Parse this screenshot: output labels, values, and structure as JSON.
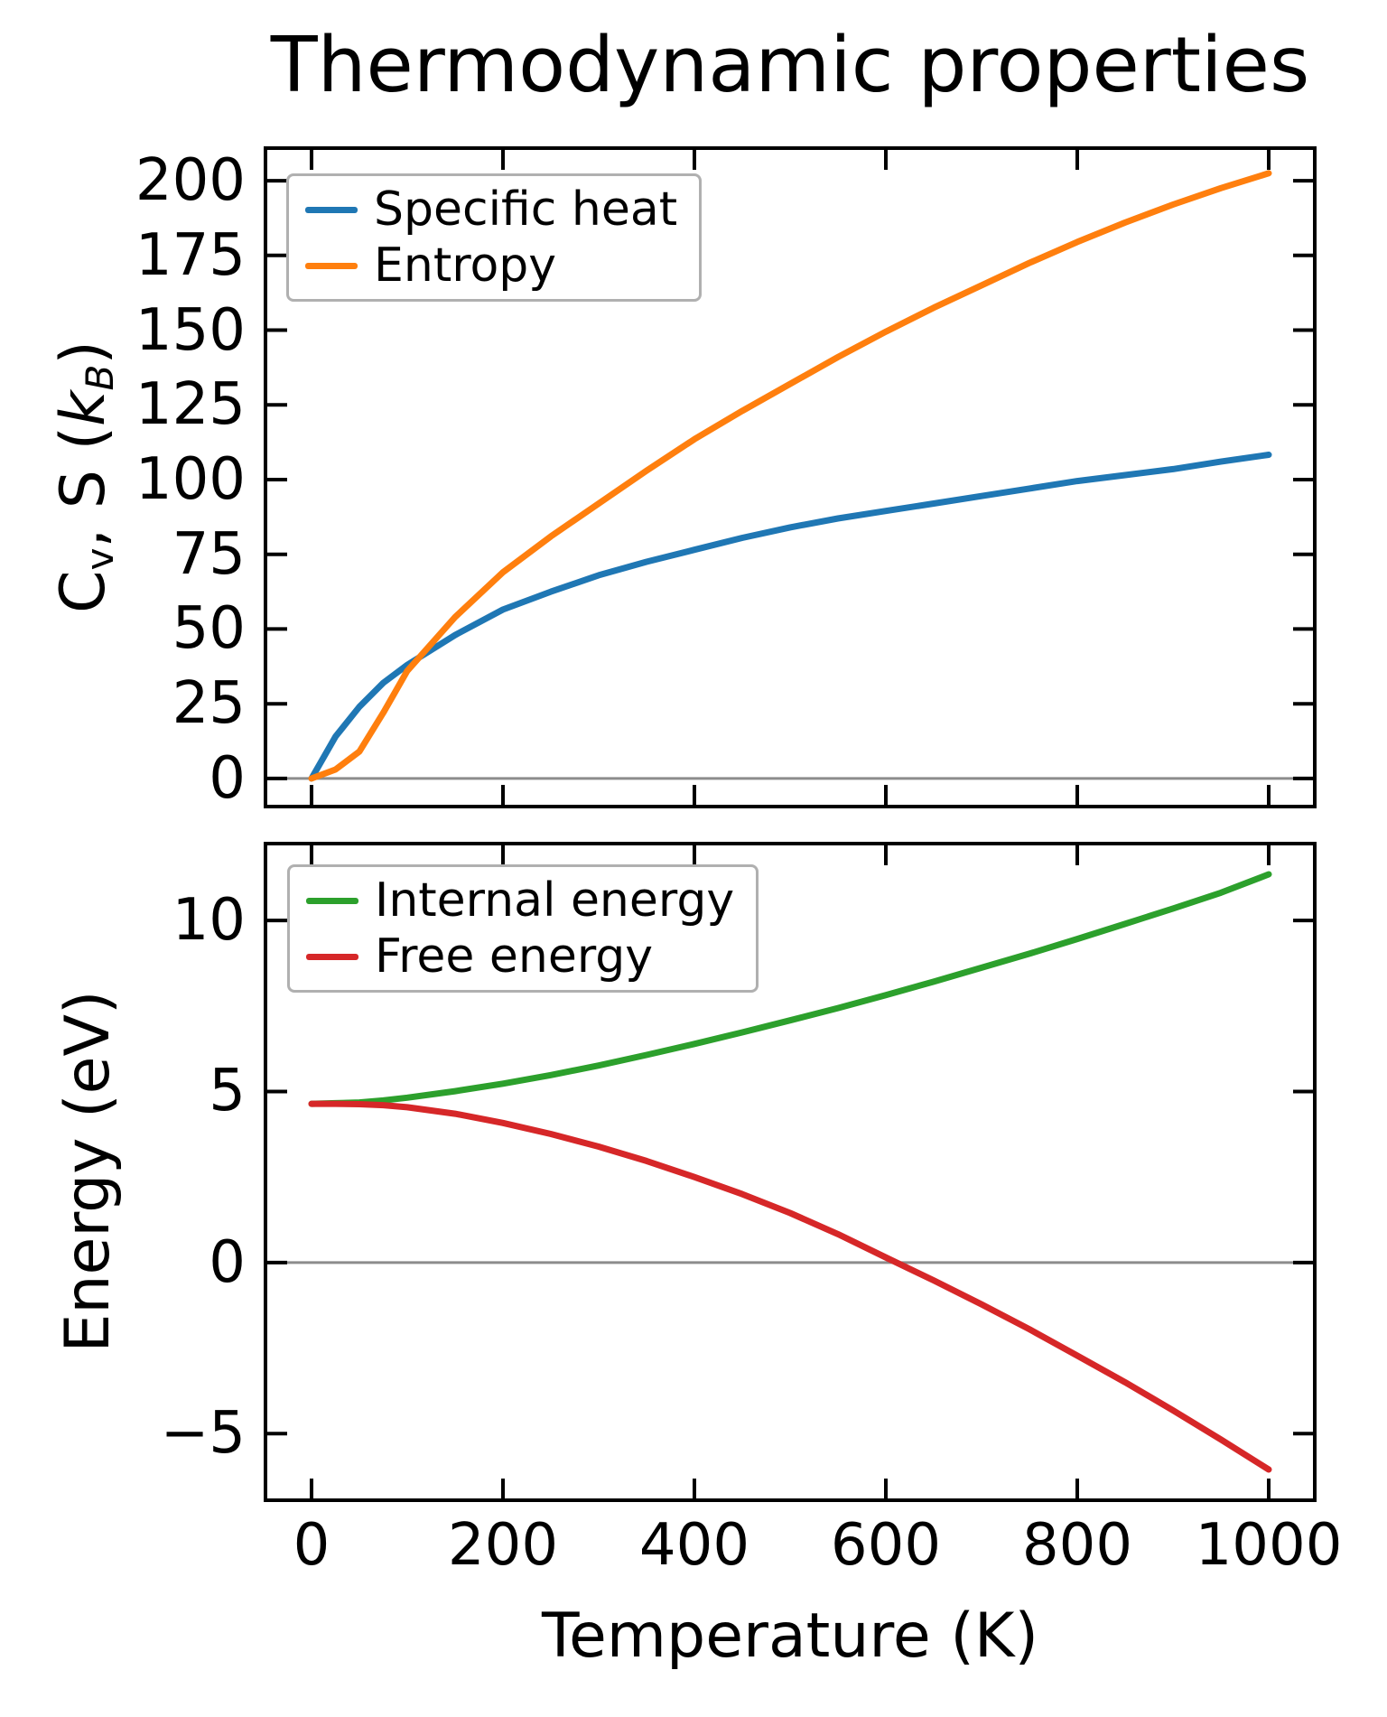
{
  "figure_title": "Thermodynamic properties",
  "colors": {
    "specific_heat": "#1f77b4",
    "entropy": "#ff7f0e",
    "internal_energy": "#2ca02c",
    "free_energy": "#d62728",
    "zero_line": "#8c8c8c",
    "axes": "#000000",
    "legend_border": "#b0b0b0"
  },
  "chart_data": [
    {
      "type": "line",
      "title": "Thermodynamic properties",
      "xlabel": "",
      "ylabel": "Cv, S (kB)",
      "ylabel_segments": [
        {
          "text": "C"
        },
        {
          "text": "v",
          "sub": true
        },
        {
          "text": ", S ("
        },
        {
          "text": "k",
          "italic": true
        },
        {
          "text": "B",
          "sub": true,
          "italic": true
        },
        {
          "text": ")"
        }
      ],
      "x": [
        0,
        25,
        50,
        75,
        100,
        150,
        200,
        250,
        300,
        350,
        400,
        450,
        500,
        550,
        600,
        650,
        700,
        750,
        800,
        850,
        900,
        950,
        1000
      ],
      "series": [
        {
          "name": "Specific heat",
          "color": "#1f77b4",
          "values": [
            0,
            14,
            24,
            32,
            38,
            48,
            56.5,
            62.5,
            68,
            72.5,
            76.5,
            80.5,
            84,
            87,
            89.5,
            92,
            94.5,
            97,
            99.5,
            101.5,
            103.5,
            106,
            108.3
          ]
        },
        {
          "name": "Entropy",
          "color": "#ff7f0e",
          "values": [
            0,
            3,
            9,
            22,
            36,
            54,
            69,
            81,
            92,
            103,
            113.5,
            123,
            132,
            141,
            149.5,
            157.5,
            165,
            172.5,
            179.5,
            186,
            192,
            197.5,
            202.5
          ]
        }
      ],
      "xlim": [
        -50,
        1050
      ],
      "ylim": [
        -10,
        211.5
      ],
      "xticks": [
        0,
        200,
        400,
        600,
        800,
        1000
      ],
      "yticks": [
        0,
        25,
        50,
        75,
        100,
        125,
        150,
        175,
        200
      ],
      "show_xtick_labels": false,
      "zero_line": true,
      "grid": false,
      "legend": {
        "position": "upper-left",
        "entries": [
          "Specific heat",
          "Entropy"
        ]
      }
    },
    {
      "type": "line",
      "title": "",
      "xlabel": "Temperature (K)",
      "ylabel": "Energy (eV)",
      "ylabel_segments": [
        {
          "text": "Energy (eV)"
        }
      ],
      "x": [
        0,
        25,
        50,
        75,
        100,
        150,
        200,
        250,
        300,
        350,
        400,
        450,
        500,
        550,
        600,
        650,
        700,
        750,
        800,
        850,
        900,
        950,
        1000
      ],
      "series": [
        {
          "name": "Internal energy",
          "color": "#2ca02c",
          "values": [
            4.64,
            4.66,
            4.68,
            4.74,
            4.82,
            5.01,
            5.23,
            5.48,
            5.76,
            6.07,
            6.39,
            6.73,
            7.08,
            7.44,
            7.82,
            8.21,
            8.62,
            9.03,
            9.46,
            9.9,
            10.35,
            10.81,
            11.35
          ]
        },
        {
          "name": "Free energy",
          "color": "#d62728",
          "values": [
            4.64,
            4.64,
            4.63,
            4.6,
            4.54,
            4.35,
            4.08,
            3.76,
            3.39,
            2.97,
            2.5,
            2.0,
            1.45,
            0.83,
            0.15,
            -0.52,
            -1.22,
            -1.95,
            -2.72,
            -3.5,
            -4.32,
            -5.17,
            -6.05
          ]
        }
      ],
      "xlim": [
        -50,
        1050
      ],
      "ylim": [
        -7,
        12.3
      ],
      "xticks": [
        0,
        200,
        400,
        600,
        800,
        1000
      ],
      "yticks": [
        -5,
        0,
        5,
        10
      ],
      "show_xtick_labels": true,
      "zero_line": true,
      "grid": false,
      "legend": {
        "position": "upper-left",
        "entries": [
          "Internal energy",
          "Free energy"
        ]
      }
    }
  ]
}
